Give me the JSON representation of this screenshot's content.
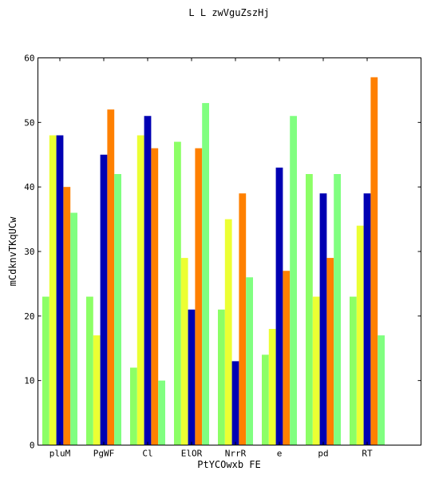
{
  "chart_data": {
    "type": "bar",
    "title": "L L zwVguZszHj",
    "xlabel": "PtYCOwxb FE",
    "ylabel": "mCdknvTKqUCw",
    "ylim": [
      0,
      60
    ],
    "yticks": [
      0,
      10,
      20,
      30,
      40,
      50,
      60
    ],
    "grid": false,
    "legend": "none",
    "categories": [
      "pluM",
      "PgWF",
      "Cl",
      "ElOR",
      "NrrR",
      "e",
      "pd",
      "RT"
    ],
    "series": [
      {
        "color": "#8cff66",
        "values": [
          23,
          23,
          12,
          47,
          21,
          14,
          42,
          23
        ]
      },
      {
        "color": "#ecff33",
        "values": [
          48,
          17,
          48,
          29,
          35,
          18,
          23,
          34
        ]
      },
      {
        "color": "#0000b3",
        "values": [
          48,
          45,
          51,
          21,
          13,
          43,
          39,
          39
        ]
      },
      {
        "color": "#ff8000",
        "values": [
          40,
          52,
          46,
          46,
          39,
          27,
          29,
          57
        ]
      },
      {
        "color": "#80ff80",
        "values": [
          36,
          42,
          10,
          53,
          26,
          51,
          42,
          17
        ]
      }
    ]
  }
}
